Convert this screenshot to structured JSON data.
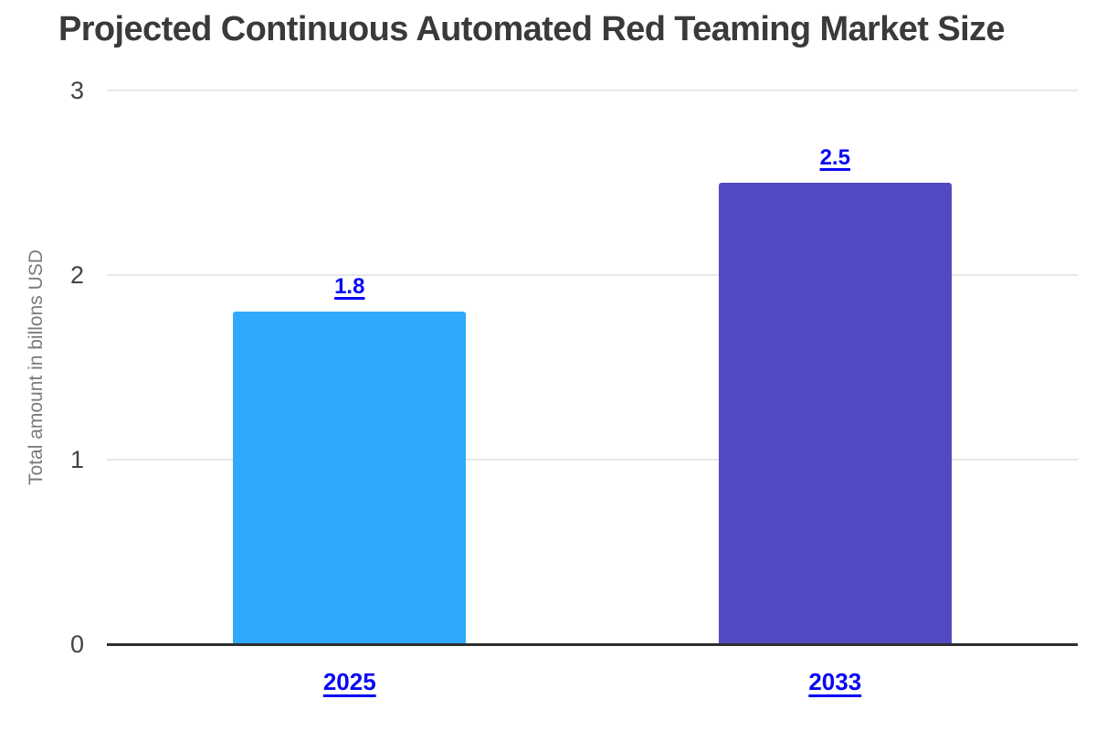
{
  "chart_data": {
    "type": "bar",
    "title": "Projected Continuous Automated Red Teaming Market Size",
    "ylabel": "Total amount in billons USD",
    "xlabel": "",
    "categories": [
      "2025",
      "2033"
    ],
    "values": [
      1.8,
      2.5
    ],
    "value_labels": [
      "1.8",
      "2.5"
    ],
    "bar_colors": [
      "#2fa9fb",
      "#524ac2"
    ],
    "ylim": [
      0,
      3
    ],
    "yticks": [
      "0",
      "1",
      "2",
      "3"
    ],
    "grid": "horizontal gridlines at 1, 2, 3",
    "legend_position": "none",
    "colors": {
      "label_link_blue": "#0707f5",
      "title_text": "#3a3a3a",
      "tick_text": "#424242",
      "ylabel_text": "#7a7a7a",
      "gridline": "#e7e7e7",
      "axis_line": "#2e2e2e",
      "background": "#ffffff"
    }
  }
}
